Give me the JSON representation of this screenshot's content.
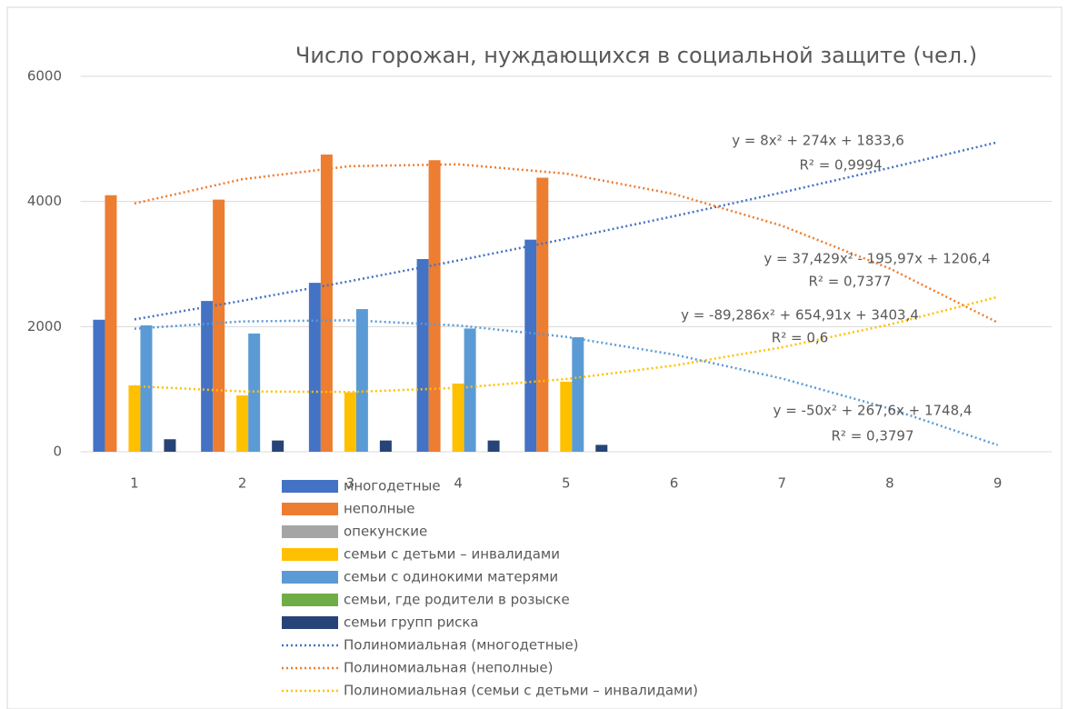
{
  "chart_data": {
    "type": "bar",
    "title": "Число горожан, нуждающихся в социальной защите (чел.)",
    "categories": [
      "1",
      "2",
      "3",
      "4",
      "5",
      "6",
      "7",
      "8",
      "9"
    ],
    "ylim": [
      0,
      6000
    ],
    "yticks": [
      0,
      2000,
      4000,
      6000
    ],
    "grid": true,
    "series": [
      {
        "name": "многодетные",
        "color": "#4472c4",
        "values": [
          2110,
          2410,
          2700,
          3080,
          3390,
          null,
          null,
          null,
          null
        ]
      },
      {
        "name": "неполные",
        "color": "#ed7d31",
        "values": [
          4100,
          4030,
          4750,
          4660,
          4380,
          null,
          null,
          null,
          null
        ]
      },
      {
        "name": "опекунские",
        "color": "#a5a5a5",
        "values": [
          0,
          0,
          0,
          0,
          0,
          null,
          null,
          null,
          null
        ]
      },
      {
        "name": "семьи с детьми – инвалидами",
        "color": "#ffc000",
        "values": [
          1060,
          900,
          950,
          1090,
          1120,
          null,
          null,
          null,
          null
        ]
      },
      {
        "name": "семьи с одинокими матерями",
        "color": "#5b9bd5",
        "values": [
          2020,
          1890,
          2280,
          1970,
          1830,
          null,
          null,
          null,
          null
        ]
      },
      {
        "name": "семьи, где родители в розыске",
        "color": "#70ad47",
        "values": [
          0,
          0,
          0,
          0,
          0,
          null,
          null,
          null,
          null
        ]
      },
      {
        "name": "семьи групп риска",
        "color": "#264478",
        "values": [
          200,
          180,
          180,
          180,
          110,
          null,
          null,
          null,
          null
        ]
      }
    ],
    "trendlines": [
      {
        "name": "Полиномиальная (многодетные)",
        "color": "#4472c4",
        "values": [
          2115.6,
          2413.6,
          2727.6,
          3057.6,
          3403.6,
          3765.6,
          4143.6,
          4537.6,
          4947.6
        ]
      },
      {
        "name": "Полиномиальная (неполные)",
        "color": "#ed7d31",
        "values": [
          3969.0,
          4356.1,
          4564.6,
          4594.5,
          4445.8,
          4118.6,
          3612.8,
          2928.4,
          2065.4
        ]
      },
      {
        "name": "Полиномиальная (семьи с детьми – инвалидами)",
        "color": "#ffc000",
        "values": [
          1047.9,
          964.2,
          955.4,
          1021.4,
          1162.3,
          1378.0,
          1668.6,
          2034.1,
          2474.4
        ]
      },
      {
        "color": "#5b9bd5",
        "values": [
          1966.0,
          2083.6,
          2101.2,
          2018.8,
          1836.4,
          1554.0,
          1171.6,
          689.2,
          106.8
        ]
      }
    ],
    "annotations": [
      "y = 8x² + 274x + 1833,6",
      "R² = 0,9994",
      "y = 37,429x² - 195,97x + 1206,4",
      "R² = 0,7377",
      "y = -89,286x² + 654,91x + 3403,4",
      "R² = 0,6",
      "y = -50x² + 267,6x + 1748,4",
      "R² = 0,3797"
    ]
  }
}
